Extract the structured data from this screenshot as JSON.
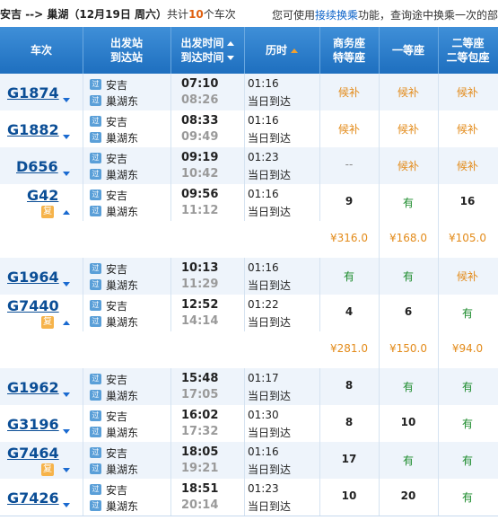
{
  "topbar": {
    "from": "安吉",
    "arrow": " --> ",
    "to": "巢湖",
    "date_open": "（",
    "date": "12月19日",
    "weekday": "周六",
    "date_close": "）",
    "count_pre": "共计",
    "count": "10",
    "count_post": "个车次",
    "tip_pre": "您可使用",
    "tip_link": "接续换乘",
    "tip_post": "功能，查询途中换乘一次的部"
  },
  "header": {
    "train": "车次",
    "station1": "出发站",
    "station2": "到达站",
    "time1": "出发时间",
    "time2": "到达时间",
    "duration": "历时",
    "biz1": "商务座",
    "biz2": "特等座",
    "first": "一等座",
    "second1": "二等座",
    "second2": "二等包座"
  },
  "badge_text": "过",
  "fu_text": "复",
  "rows": [
    {
      "train": "G1874",
      "from": "安吉",
      "to": "巢湖东",
      "dep": "07:10",
      "arr": "08:26",
      "dur": "01:16",
      "day": "当日到达",
      "biz": "候补",
      "first": "候补",
      "second": "候补"
    },
    {
      "train": "G1882",
      "from": "安吉",
      "to": "巢湖东",
      "dep": "08:33",
      "arr": "09:49",
      "dur": "01:16",
      "day": "当日到达",
      "biz": "候补",
      "first": "候补",
      "second": "候补"
    },
    {
      "train": "D656",
      "from": "安吉",
      "to": "巢湖东",
      "dep": "09:19",
      "arr": "10:42",
      "dur": "01:23",
      "day": "当日到达",
      "biz": "--",
      "first": "候补",
      "second": "候补"
    },
    {
      "train": "G42",
      "from": "安吉",
      "to": "巢湖东",
      "dep": "09:56",
      "arr": "11:12",
      "dur": "01:16",
      "day": "当日到达",
      "biz": "9",
      "first": "有",
      "second": "16"
    },
    {
      "train": "G1964",
      "from": "安吉",
      "to": "巢湖东",
      "dep": "10:13",
      "arr": "11:29",
      "dur": "01:16",
      "day": "当日到达",
      "biz": "有",
      "first": "有",
      "second": "候补"
    },
    {
      "train": "G7440",
      "from": "安吉",
      "to": "巢湖东",
      "dep": "12:52",
      "arr": "14:14",
      "dur": "01:22",
      "day": "当日到达",
      "biz": "4",
      "first": "6",
      "second": "有"
    },
    {
      "train": "G1962",
      "from": "安吉",
      "to": "巢湖东",
      "dep": "15:48",
      "arr": "17:05",
      "dur": "01:17",
      "day": "当日到达",
      "biz": "8",
      "first": "有",
      "second": "有"
    },
    {
      "train": "G3196",
      "from": "安吉",
      "to": "巢湖东",
      "dep": "16:02",
      "arr": "17:32",
      "dur": "01:30",
      "day": "当日到达",
      "biz": "8",
      "first": "10",
      "second": "有"
    },
    {
      "train": "G7464",
      "from": "安吉",
      "to": "巢湖东",
      "dep": "18:05",
      "arr": "19:21",
      "dur": "01:16",
      "day": "当日到达",
      "biz": "17",
      "first": "有",
      "second": "有"
    },
    {
      "train": "G7426",
      "from": "安吉",
      "to": "巢湖东",
      "dep": "18:51",
      "arr": "20:14",
      "dur": "01:23",
      "day": "当日到达",
      "biz": "10",
      "first": "20",
      "second": "有"
    }
  ],
  "prices": [
    {
      "biz": "¥316.0",
      "first": "¥168.0",
      "second": "¥105.0"
    },
    {
      "biz": "¥281.0",
      "first": "¥150.0",
      "second": "¥94.0"
    }
  ],
  "colors": {
    "header": "#2b7fcf",
    "wait": "#e38b1a",
    "have": "#1a8a2a",
    "train": "#0b4e96"
  }
}
